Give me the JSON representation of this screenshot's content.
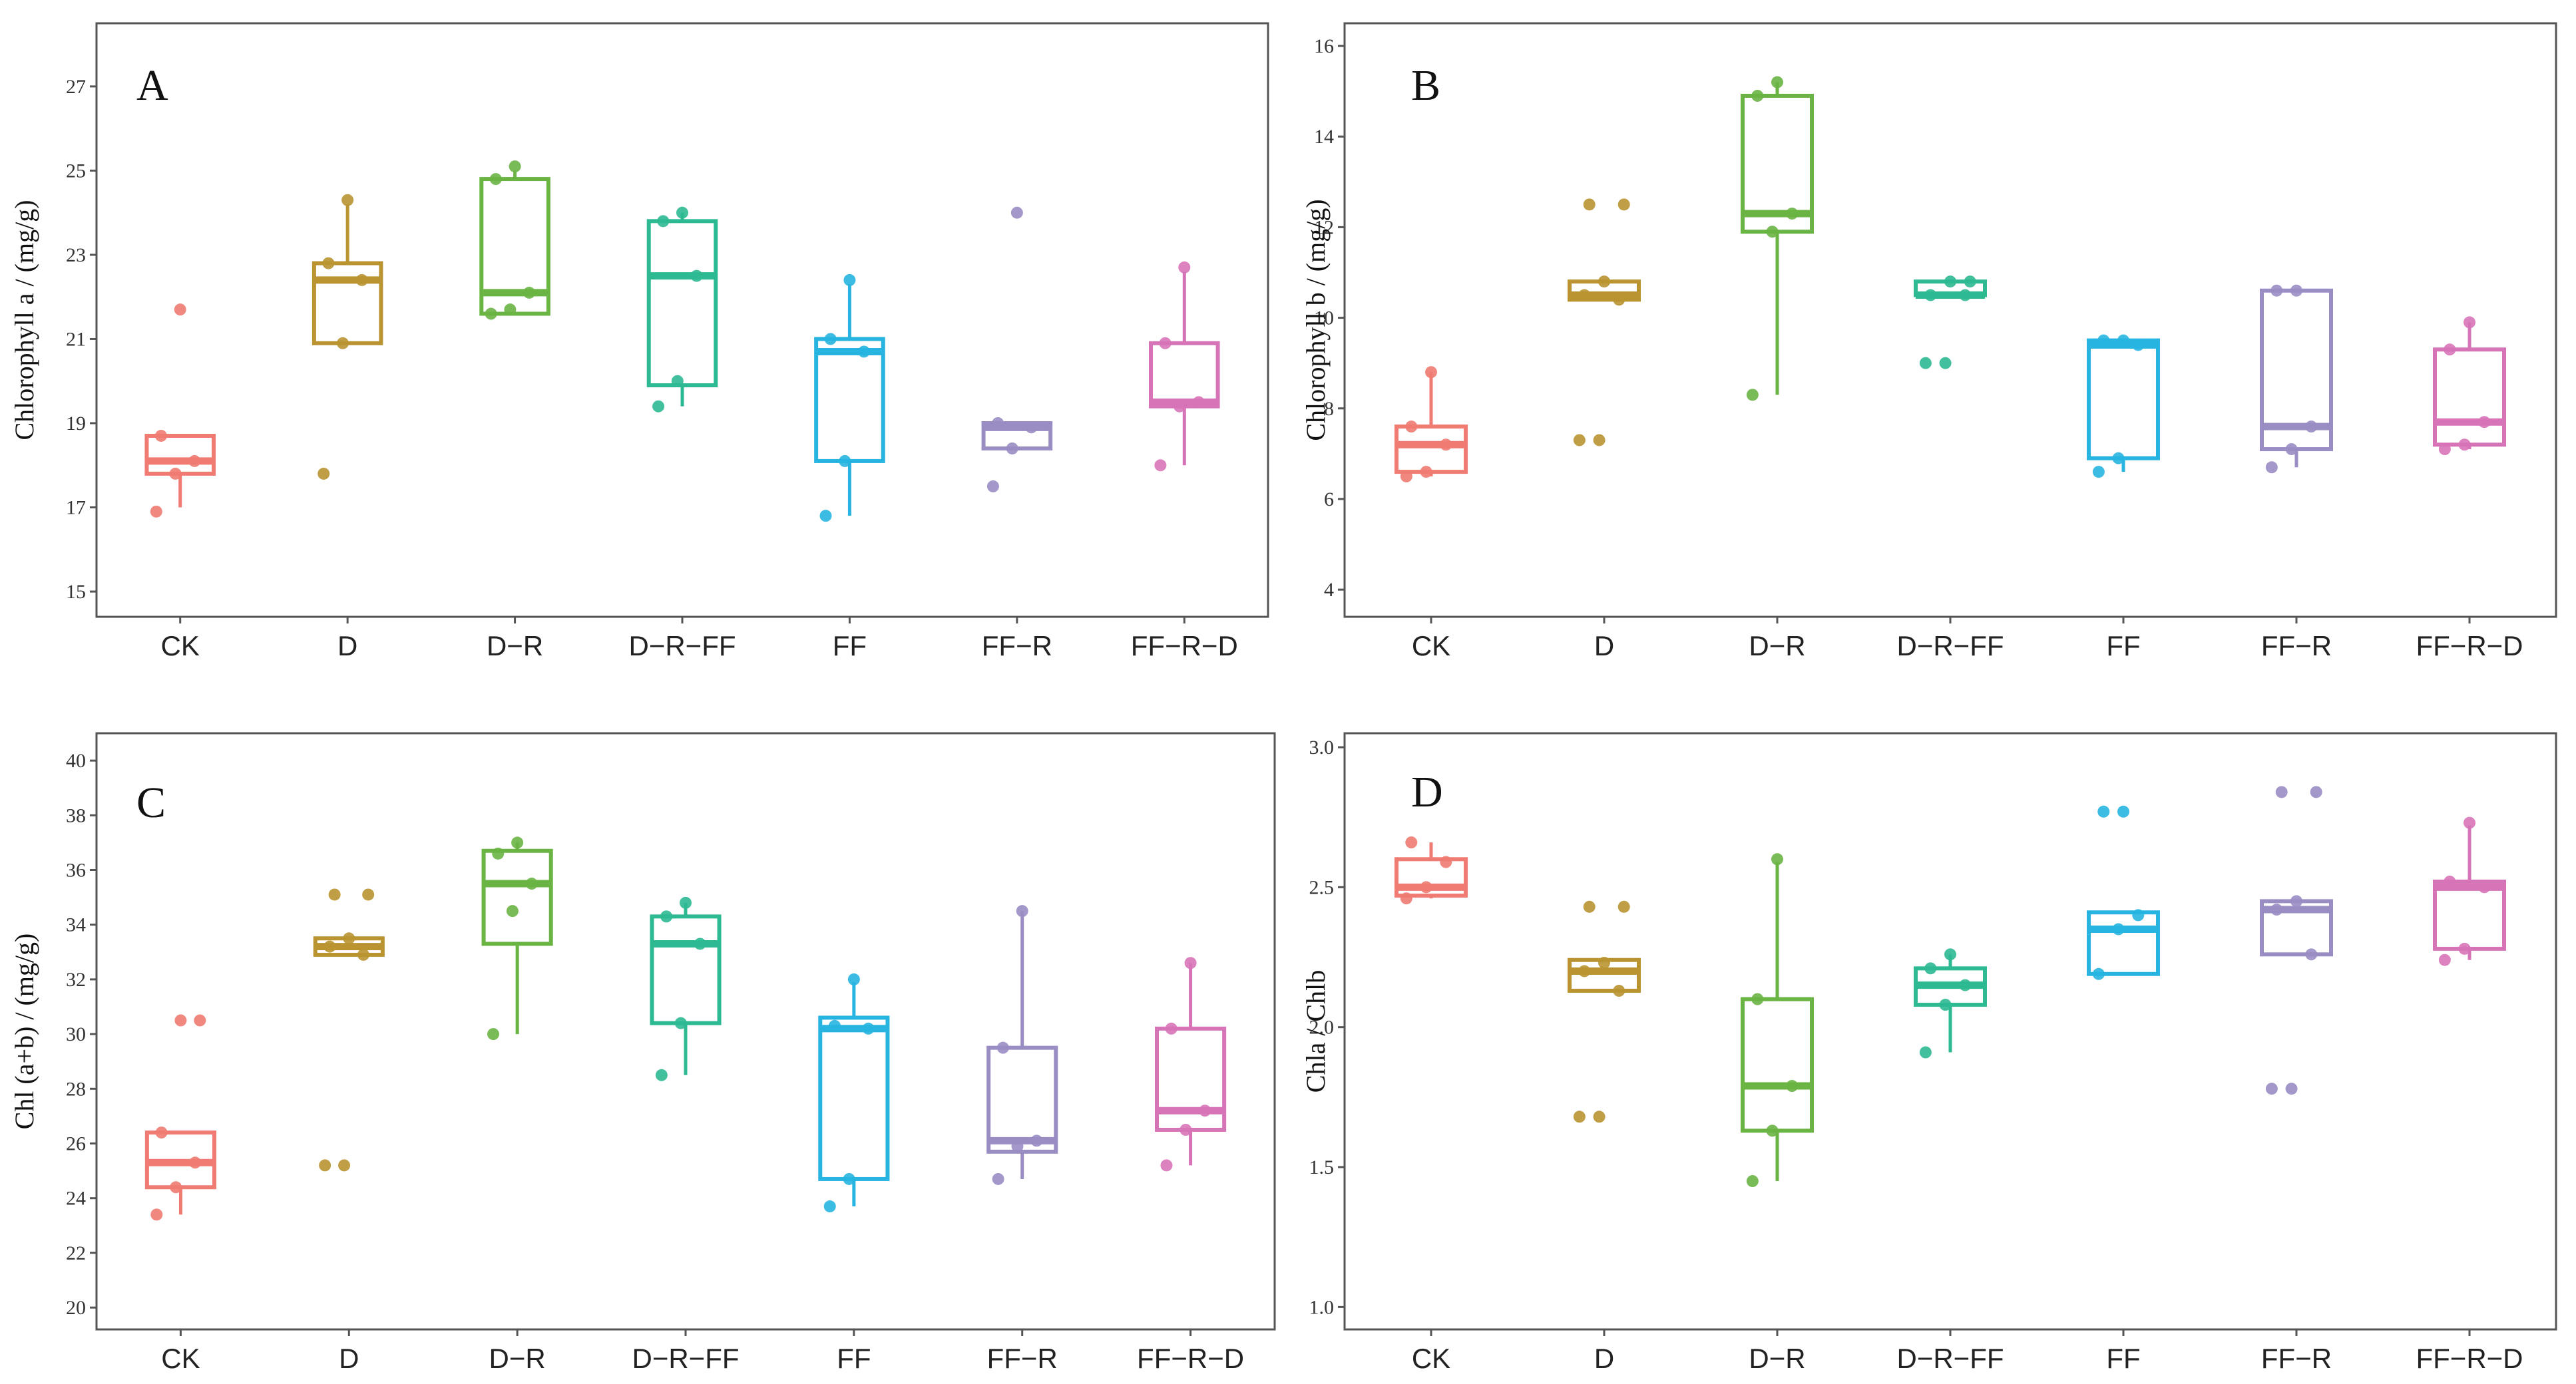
{
  "chart_data": [
    {
      "type": "box",
      "panel": "A",
      "ylabel": "Chlorophyll a / (mg/g)",
      "ylim": [
        14.4,
        28.5
      ],
      "yticks": [
        15,
        17,
        19,
        21,
        23,
        25,
        27
      ],
      "categories": [
        "CK",
        "D",
        "D−R",
        "D−R−FF",
        "FF",
        "FF−R",
        "FF−R−D"
      ],
      "boxes": [
        {
          "q1": 17.8,
          "median": 18.1,
          "q3": 18.7,
          "whisker_low": 17.0,
          "whisker_high": 18.7,
          "points": [
            16.9,
            17.8,
            18.1,
            18.7,
            21.7
          ]
        },
        {
          "q1": 20.9,
          "median": 22.4,
          "q3": 22.8,
          "whisker_low": 20.9,
          "whisker_high": 24.2,
          "points": [
            17.8,
            20.9,
            22.4,
            22.8,
            24.3
          ]
        },
        {
          "q1": 21.6,
          "median": 22.1,
          "q3": 24.8,
          "whisker_low": 21.6,
          "whisker_high": 25.0,
          "points": [
            21.6,
            21.7,
            22.1,
            24.8,
            25.1
          ]
        },
        {
          "q1": 19.9,
          "median": 22.5,
          "q3": 23.8,
          "whisker_low": 19.4,
          "whisker_high": 24.0,
          "points": [
            19.4,
            20.0,
            22.5,
            23.8,
            24.0
          ]
        },
        {
          "q1": 18.1,
          "median": 20.7,
          "q3": 21.0,
          "whisker_low": 16.8,
          "whisker_high": 22.3,
          "points": [
            16.8,
            18.1,
            20.7,
            21.0,
            22.4
          ]
        },
        {
          "q1": 18.4,
          "median": 18.9,
          "q3": 19.0,
          "whisker_low": 18.4,
          "whisker_high": 19.0,
          "points": [
            17.5,
            18.4,
            18.9,
            19.0,
            24.0
          ]
        },
        {
          "q1": 19.4,
          "median": 19.5,
          "q3": 20.9,
          "whisker_low": 18.0,
          "whisker_high": 22.6,
          "points": [
            18.0,
            19.4,
            19.5,
            20.9,
            22.7
          ]
        }
      ]
    },
    {
      "type": "box",
      "panel": "B",
      "ylabel": "Chlorophyll b / (mg/g)",
      "ylim": [
        3.4,
        16.5
      ],
      "yticks": [
        4,
        6,
        8,
        10,
        12,
        14,
        16
      ],
      "categories": [
        "CK",
        "D",
        "D−R",
        "D−R−FF",
        "FF",
        "FF−R",
        "FF−R−D"
      ],
      "boxes": [
        {
          "q1": 6.6,
          "median": 7.2,
          "q3": 7.6,
          "whisker_low": 6.5,
          "whisker_high": 8.8,
          "points": [
            6.5,
            6.6,
            7.2,
            7.6,
            8.8
          ]
        },
        {
          "q1": 10.4,
          "median": 10.5,
          "q3": 10.8,
          "whisker_low": 10.4,
          "whisker_high": 10.8,
          "points": [
            7.3,
            7.3,
            10.4,
            10.5,
            10.8,
            12.5,
            12.5
          ]
        },
        {
          "q1": 11.9,
          "median": 12.3,
          "q3": 14.9,
          "whisker_low": 8.3,
          "whisker_high": 15.2,
          "points": [
            8.3,
            11.9,
            12.3,
            14.9,
            15.2
          ]
        },
        {
          "q1": 10.5,
          "median": 10.5,
          "q3": 10.8,
          "whisker_low": 10.5,
          "whisker_high": 10.8,
          "points": [
            9.0,
            9.0,
            10.5,
            10.5,
            10.8,
            10.8
          ]
        },
        {
          "q1": 6.9,
          "median": 9.4,
          "q3": 9.5,
          "whisker_low": 6.6,
          "whisker_high": 9.5,
          "points": [
            6.6,
            6.9,
            9.4,
            9.5,
            9.5
          ]
        },
        {
          "q1": 7.1,
          "median": 7.6,
          "q3": 10.6,
          "whisker_low": 6.7,
          "whisker_high": 10.6,
          "points": [
            6.7,
            7.1,
            7.6,
            10.6,
            10.6
          ]
        },
        {
          "q1": 7.2,
          "median": 7.7,
          "q3": 9.3,
          "whisker_low": 7.1,
          "whisker_high": 9.9,
          "points": [
            7.1,
            7.2,
            7.7,
            9.3,
            9.9
          ]
        }
      ]
    },
    {
      "type": "box",
      "panel": "C",
      "ylabel": "Chl (a+b) / (mg/g)",
      "ylim": [
        19.2,
        41.0
      ],
      "yticks": [
        20,
        22,
        24,
        26,
        28,
        30,
        32,
        34,
        36,
        38,
        40
      ],
      "categories": [
        "CK",
        "D",
        "D−R",
        "D−R−FF",
        "FF",
        "FF−R",
        "FF−R−D"
      ],
      "boxes": [
        {
          "q1": 24.4,
          "median": 25.3,
          "q3": 26.4,
          "whisker_low": 23.4,
          "whisker_high": 26.4,
          "points": [
            23.4,
            24.4,
            25.3,
            26.4,
            30.5,
            30.5
          ]
        },
        {
          "q1": 32.9,
          "median": 33.2,
          "q3": 33.5,
          "whisker_low": 32.9,
          "whisker_high": 33.5,
          "points": [
            25.2,
            25.2,
            32.9,
            33.2,
            33.5,
            35.1,
            35.1
          ]
        },
        {
          "q1": 33.3,
          "median": 35.5,
          "q3": 36.7,
          "whisker_low": 30.0,
          "whisker_high": 37.0,
          "points": [
            30.0,
            34.5,
            35.5,
            36.6,
            37.0
          ]
        },
        {
          "q1": 30.4,
          "median": 33.3,
          "q3": 34.3,
          "whisker_low": 28.5,
          "whisker_high": 34.8,
          "points": [
            28.5,
            30.4,
            33.3,
            34.3,
            34.8
          ]
        },
        {
          "q1": 24.7,
          "median": 30.2,
          "q3": 30.6,
          "whisker_low": 23.7,
          "whisker_high": 31.9,
          "points": [
            23.7,
            24.7,
            30.2,
            30.3,
            32.0
          ]
        },
        {
          "q1": 25.7,
          "median": 26.1,
          "q3": 29.5,
          "whisker_low": 24.7,
          "whisker_high": 34.5,
          "points": [
            24.7,
            25.9,
            26.1,
            29.5,
            34.5
          ]
        },
        {
          "q1": 26.5,
          "median": 27.2,
          "q3": 30.2,
          "whisker_low": 25.2,
          "whisker_high": 32.6,
          "points": [
            25.2,
            26.5,
            27.2,
            30.2,
            32.6
          ]
        }
      ]
    },
    {
      "type": "box",
      "panel": "D",
      "ylabel": "Chla / Chlb",
      "ylim": [
        0.92,
        3.05
      ],
      "yticks": [
        "1.0",
        "1.5",
        "2.0",
        "2.5",
        "3.0"
      ],
      "categories": [
        "CK",
        "D",
        "D−R",
        "D−R−FF",
        "FF",
        "FF−R",
        "FF−R−D"
      ],
      "boxes": [
        {
          "q1": 2.47,
          "median": 2.5,
          "q3": 2.6,
          "whisker_low": 2.46,
          "whisker_high": 2.66,
          "points": [
            2.46,
            2.5,
            2.59,
            2.66
          ]
        },
        {
          "q1": 2.13,
          "median": 2.2,
          "q3": 2.24,
          "whisker_low": 2.13,
          "whisker_high": 2.24,
          "points": [
            1.68,
            1.68,
            2.13,
            2.2,
            2.23,
            2.43,
            2.43
          ]
        },
        {
          "q1": 1.63,
          "median": 1.79,
          "q3": 2.1,
          "whisker_low": 1.45,
          "whisker_high": 2.59,
          "points": [
            1.45,
            1.63,
            1.79,
            2.1,
            2.6
          ]
        },
        {
          "q1": 2.08,
          "median": 2.15,
          "q3": 2.21,
          "whisker_low": 1.91,
          "whisker_high": 2.26,
          "points": [
            1.91,
            2.08,
            2.15,
            2.21,
            2.26
          ]
        },
        {
          "q1": 2.19,
          "median": 2.35,
          "q3": 2.41,
          "whisker_low": 2.19,
          "whisker_high": 2.41,
          "points": [
            2.19,
            2.35,
            2.4,
            2.77,
            2.77
          ]
        },
        {
          "q1": 2.26,
          "median": 2.42,
          "q3": 2.45,
          "whisker_low": 2.26,
          "whisker_high": 2.45,
          "points": [
            1.78,
            1.78,
            2.26,
            2.42,
            2.45,
            2.84,
            2.84
          ]
        },
        {
          "q1": 2.28,
          "median": 2.5,
          "q3": 2.52,
          "whisker_low": 2.24,
          "whisker_high": 2.72,
          "points": [
            2.24,
            2.28,
            2.5,
            2.52,
            2.73
          ]
        }
      ]
    }
  ],
  "palette": [
    "#f07b72",
    "#b99431",
    "#6ab444",
    "#2db992",
    "#27b4e0",
    "#9a8dc4",
    "#d774b8"
  ]
}
